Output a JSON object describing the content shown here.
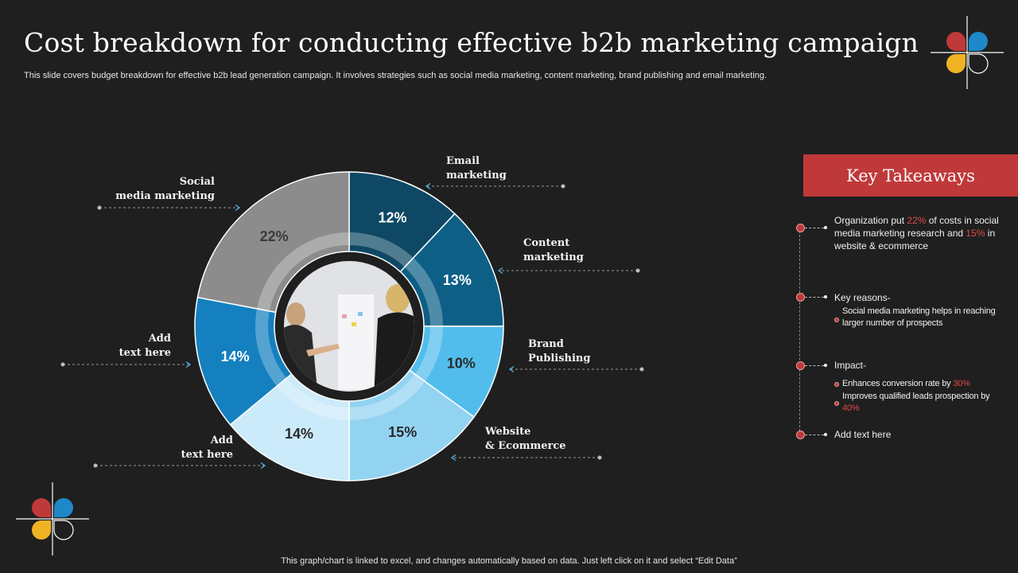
{
  "header": {
    "title": "Cost breakdown for conducting effective b2b marketing campaign",
    "subtitle": "This slide covers budget breakdown for effective  b2b lead generation campaign. It involves strategies such as social media marketing, content marketing, brand publishing and email marketing."
  },
  "footer": {
    "note": "This graph/chart is linked to excel,  and changes automatically based on data. Just left click on it and select “Edit Data”"
  },
  "chart_data": {
    "type": "pie",
    "variant": "donut",
    "categories": [
      "Email marketing",
      "Content marketing",
      "Brand Publishing",
      "Website & Ecommerce",
      "Add text here",
      "Add text here",
      "Social media marketing"
    ],
    "values": [
      12,
      13,
      10,
      15,
      14,
      14,
      22
    ],
    "value_labels": [
      "12%",
      "13%",
      "10%",
      "15%",
      "14%",
      "14%",
      "22%"
    ],
    "label_lines": [
      [
        "Email",
        "marketing"
      ],
      [
        "Content",
        "marketing"
      ],
      [
        "Brand",
        "Publishing"
      ],
      [
        "Website",
        "& Ecommerce"
      ],
      [
        "Add",
        "text here"
      ],
      [
        "Add",
        "text here"
      ],
      [
        "Social",
        "media marketing"
      ]
    ],
    "colors": [
      "#0e4865",
      "#0d5f86",
      "#52bdec",
      "#93d3f2",
      "#cbeafa",
      "#1580bf",
      "#8c8c8c"
    ],
    "value_label_colors": [
      "#ffffff",
      "#ffffff",
      "#2a2a2a",
      "#2a2a2a",
      "#2a2a2a",
      "#ffffff",
      "#3a3a3a"
    ]
  },
  "takeaways": {
    "title": "Key Takeaways",
    "item1": {
      "pre": "Organization  put ",
      "hl1": "22%",
      "mid": " of costs in social media marketing research and ",
      "hl2": "15%",
      "post": " in website & ecommerce"
    },
    "item2": {
      "title": "Key reasons-",
      "sub1": "Social media marketing helps in reaching larger number of prospects"
    },
    "item3": {
      "title": "Impact-",
      "sub1_pre": "Enhances conversion rate by ",
      "sub1_hl": "30%",
      "sub2_pre": "Improves qualified leads prospection by ",
      "sub2_hl": "40%"
    },
    "item4": {
      "title": "Add text here"
    }
  },
  "logo_colors": [
    "#c0393a",
    "#1e88c9",
    "#f0b323",
    "#1f1f1f"
  ]
}
